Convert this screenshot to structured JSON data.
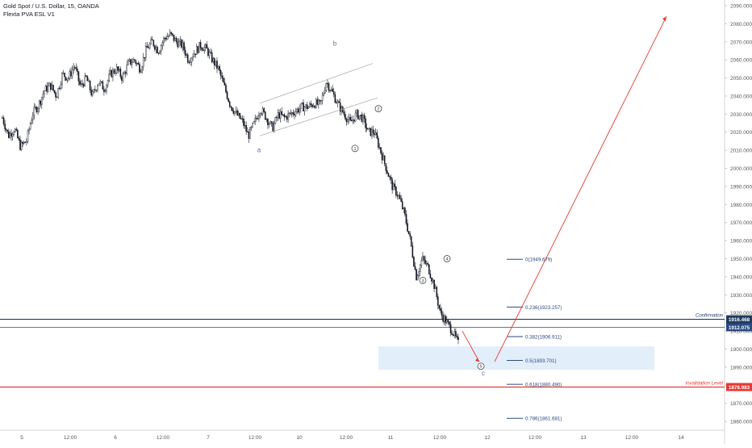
{
  "header": {
    "symbol_line": "Gold Spot / U.S. Dollar, 15, OANDA",
    "indicator_line": "Flexta PVA ESL V1"
  },
  "chart_data": {
    "type": "candlestick",
    "y_axis": {
      "min": 1855,
      "max": 2092,
      "ticks": [
        2090,
        2080,
        2070,
        2060,
        2050,
        2040,
        2030,
        2020,
        2010,
        2000,
        1990,
        1980,
        1970,
        1960,
        1950,
        1940,
        1930,
        1920,
        1910,
        1900,
        1890,
        1880,
        1870,
        1860
      ],
      "tick_labels": [
        "2090.000",
        "2080.000",
        "2070.000",
        "2060.000",
        "2050.000",
        "2040.000",
        "2030.000",
        "2020.000",
        "2010.000",
        "2000.000",
        "1990.000",
        "1980.000",
        "1970.000",
        "1960.000",
        "1950.000",
        "1940.000",
        "1930.000",
        "1920.000",
        "1910.000",
        "1900.000",
        "1890.000",
        "1880.000",
        "1870.000",
        "1860.000"
      ],
      "position": "right"
    },
    "x_axis": {
      "tick_labels": [
        "5",
        "12:00",
        "6",
        "12:00",
        "7",
        "12:00",
        "10",
        "12:00",
        "11",
        "12:00",
        "12",
        "12:00",
        "13",
        "12:00",
        "14"
      ]
    },
    "price_path": [
      [
        2028,
        2018,
        2022,
        2012,
        2015,
        2030,
        2035,
        2043,
        2046,
        2040,
        2052,
        2050,
        2057,
        2045,
        2050,
        2040,
        2048,
        2044,
        2052,
        2055,
        2050,
        2058,
        2060,
        2055,
        2066,
        2070,
        2065,
        2072,
        2074,
        2070,
        2068,
        2060,
        2064,
        2068,
        2066,
        2060,
        2055,
        2045,
        2035,
        2030,
        2026,
        2018,
        2025,
        2033,
        2028,
        2022,
        2030,
        2028,
        2030,
        2032,
        2034,
        2034,
        2036,
        2035,
        2048,
        2042,
        2035,
        2030,
        2025,
        2030,
        2028,
        2020,
        2020,
        2010,
        2000,
        1990,
        1985,
        1975,
        1960,
        1940,
        1950,
        1945,
        1935,
        1920,
        1915,
        1910,
        1903
      ]
    ],
    "levels": [
      {
        "price": 1916.468,
        "label": "Confirmation",
        "badge": "1916.468",
        "color": "#1e3a5f"
      },
      {
        "price": 1912.075,
        "label": "",
        "badge": "1912.075",
        "color": "#2a4a7f"
      },
      {
        "price": 1878.983,
        "label": "Invalidation Level",
        "badge": "1878.983",
        "color": "#e53935"
      }
    ],
    "fibonacci": [
      {
        "ratio": "0",
        "price": 1949.679,
        "text": "0(1949.679)"
      },
      {
        "ratio": "0.236",
        "price": 1923.257,
        "text": "0.236(1923.257)"
      },
      {
        "ratio": "0.382",
        "price": 1906.911,
        "text": "0.382(1906.911)"
      },
      {
        "ratio": "0.5",
        "price": 1893.701,
        "text": "0.5(1893.701)"
      },
      {
        "ratio": "0.618",
        "price": 1880.49,
        "text": "0.618(1880.490)"
      },
      {
        "ratio": "0.786",
        "price": 1861.681,
        "text": "0.786(1861.681)"
      }
    ],
    "target_zone": {
      "from": 1888.5,
      "to": 1901.5
    },
    "wave_labels": [
      {
        "text": "a",
        "kind": "letter"
      },
      {
        "text": "b",
        "kind": "letter"
      },
      {
        "text": "c",
        "kind": "letter"
      },
      {
        "text": "1",
        "kind": "circled"
      },
      {
        "text": "2",
        "kind": "circled"
      },
      {
        "text": "3",
        "kind": "circled"
      },
      {
        "text": "4",
        "kind": "circled"
      },
      {
        "text": "5",
        "kind": "circled"
      }
    ],
    "grid": false
  },
  "colors": {
    "up": "#131722",
    "down": "#131722",
    "channel": "#b0b0b0",
    "arrow": "#e53935",
    "fib": "#2a4a7f",
    "zone": "#e3eefb",
    "axis_text": "#555555"
  }
}
